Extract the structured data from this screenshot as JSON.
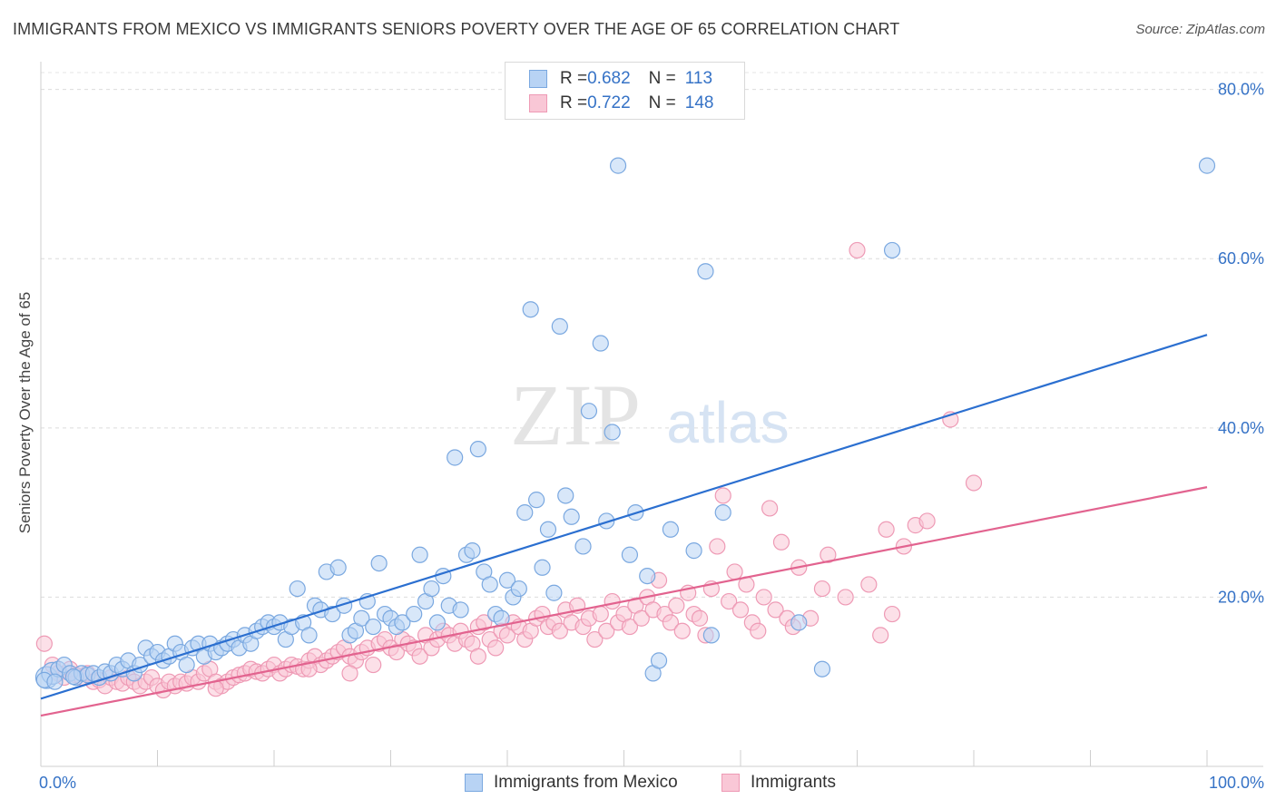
{
  "title": "IMMIGRANTS FROM MEXICO VS IMMIGRANTS SENIORS POVERTY OVER THE AGE OF 65 CORRELATION CHART",
  "source": "Source: ZipAtlas.com",
  "watermark": {
    "zip": "ZIP",
    "atlas": "atlas"
  },
  "legend": [
    {
      "r_label": "R = ",
      "r_value": "0.682",
      "n_label": "N = ",
      "n_value": "113",
      "color": "#b8d3f4"
    },
    {
      "r_label": "R = ",
      "r_value": "0.722",
      "n_label": "N = ",
      "n_value": "148",
      "color": "#f9c7d6"
    }
  ],
  "chart_data": {
    "type": "scatter",
    "title": "IMMIGRANTS FROM MEXICO VS IMMIGRANTS SENIORS POVERTY OVER THE AGE OF 65 CORRELATION CHART",
    "xlabel": "",
    "ylabel": "Seniors Poverty Over the Age of 65",
    "xlim": [
      0,
      100
    ],
    "ylim": [
      0,
      82
    ],
    "x_tick_labels": [
      "0.0%",
      "100.0%"
    ],
    "y_ticks": [
      20,
      40,
      60,
      80
    ],
    "y_tick_labels": [
      "20.0%",
      "40.0%",
      "60.0%",
      "80.0%"
    ],
    "grid": "horizontal dashed",
    "legend_position": "top-center",
    "series": [
      {
        "name": "Immigrants from Mexico",
        "color": "#7aa8e0",
        "fill": "#b8d3f4",
        "trend": {
          "x": [
            0,
            100
          ],
          "y": [
            8.0,
            51.0
          ],
          "color": "#2b6fd0"
        },
        "points": [
          [
            0.5,
            10.5
          ],
          [
            1.0,
            11.0
          ],
          [
            1.5,
            11.5
          ],
          [
            2.0,
            12.0
          ],
          [
            2.5,
            11.0
          ],
          [
            3.0,
            10.5
          ],
          [
            3.5,
            11.0
          ],
          [
            4.0,
            10.8
          ],
          [
            4.5,
            11.0
          ],
          [
            5.0,
            10.5
          ],
          [
            5.5,
            11.2
          ],
          [
            6.0,
            11.0
          ],
          [
            6.5,
            12.0
          ],
          [
            7.0,
            11.5
          ],
          [
            7.5,
            12.5
          ],
          [
            8.0,
            11.0
          ],
          [
            8.5,
            12.0
          ],
          [
            9.0,
            14.0
          ],
          [
            9.5,
            13.0
          ],
          [
            10.0,
            13.5
          ],
          [
            10.5,
            12.5
          ],
          [
            11.0,
            13.0
          ],
          [
            11.5,
            14.5
          ],
          [
            12.0,
            13.5
          ],
          [
            12.5,
            12.0
          ],
          [
            13.0,
            14.0
          ],
          [
            13.5,
            14.5
          ],
          [
            14.0,
            13.0
          ],
          [
            14.5,
            14.5
          ],
          [
            15.0,
            13.5
          ],
          [
            15.5,
            14.0
          ],
          [
            16.0,
            14.5
          ],
          [
            16.5,
            15.0
          ],
          [
            17.0,
            14.0
          ],
          [
            17.5,
            15.5
          ],
          [
            18.0,
            14.5
          ],
          [
            18.5,
            16.0
          ],
          [
            19.0,
            16.5
          ],
          [
            19.5,
            17.0
          ],
          [
            20.0,
            16.5
          ],
          [
            20.5,
            17.0
          ],
          [
            21.0,
            15.0
          ],
          [
            21.5,
            16.5
          ],
          [
            22.0,
            21.0
          ],
          [
            22.5,
            17.0
          ],
          [
            23.0,
            15.5
          ],
          [
            23.5,
            19.0
          ],
          [
            24.0,
            18.5
          ],
          [
            24.5,
            23.0
          ],
          [
            25.0,
            18.0
          ],
          [
            25.5,
            23.5
          ],
          [
            26.0,
            19.0
          ],
          [
            26.5,
            15.5
          ],
          [
            27.0,
            16.0
          ],
          [
            27.5,
            17.5
          ],
          [
            28.0,
            19.5
          ],
          [
            28.5,
            16.5
          ],
          [
            29.0,
            24.0
          ],
          [
            29.5,
            18.0
          ],
          [
            30.0,
            17.5
          ],
          [
            30.5,
            16.5
          ],
          [
            31.0,
            17.0
          ],
          [
            32.0,
            18.0
          ],
          [
            32.5,
            25.0
          ],
          [
            33.0,
            19.5
          ],
          [
            33.5,
            21.0
          ],
          [
            34.0,
            17.0
          ],
          [
            34.5,
            22.5
          ],
          [
            35.0,
            19.0
          ],
          [
            35.5,
            36.5
          ],
          [
            36.0,
            18.5
          ],
          [
            36.5,
            25.0
          ],
          [
            37.0,
            25.5
          ],
          [
            37.5,
            37.5
          ],
          [
            38.0,
            23.0
          ],
          [
            38.5,
            21.5
          ],
          [
            39.0,
            18.0
          ],
          [
            39.5,
            17.5
          ],
          [
            40.0,
            22.0
          ],
          [
            40.5,
            20.0
          ],
          [
            41.0,
            21.0
          ],
          [
            41.5,
            30.0
          ],
          [
            42.0,
            54.0
          ],
          [
            42.5,
            31.5
          ],
          [
            43.0,
            23.5
          ],
          [
            43.5,
            28.0
          ],
          [
            44.0,
            20.5
          ],
          [
            44.5,
            52.0
          ],
          [
            45.0,
            32.0
          ],
          [
            45.5,
            29.5
          ],
          [
            46.5,
            26.0
          ],
          [
            47.0,
            42.0
          ],
          [
            48.0,
            50.0
          ],
          [
            48.5,
            29.0
          ],
          [
            49.0,
            39.5
          ],
          [
            49.5,
            71.0
          ],
          [
            50.5,
            25.0
          ],
          [
            51.0,
            30.0
          ],
          [
            52.0,
            22.5
          ],
          [
            52.5,
            11.0
          ],
          [
            53.0,
            12.5
          ],
          [
            54.0,
            28.0
          ],
          [
            56.0,
            25.5
          ],
          [
            57.0,
            58.5
          ],
          [
            57.5,
            15.5
          ],
          [
            58.5,
            30.0
          ],
          [
            65.0,
            17.0
          ],
          [
            67.0,
            11.5
          ],
          [
            73.0,
            61.0
          ],
          [
            100.0,
            71.0
          ],
          [
            0.3,
            10.2
          ],
          [
            1.2,
            10.0
          ],
          [
            2.8,
            10.6
          ]
        ]
      },
      {
        "name": "Immigrants",
        "color": "#ee9ab5",
        "fill": "#f9c7d6",
        "trend": {
          "x": [
            0,
            100
          ],
          "y": [
            6.0,
            33.0
          ],
          "color": "#e2638f"
        },
        "points": [
          [
            0.3,
            14.5
          ],
          [
            1.0,
            12.0
          ],
          [
            1.5,
            11.0
          ],
          [
            2.0,
            10.5
          ],
          [
            2.5,
            11.5
          ],
          [
            3.0,
            10.8
          ],
          [
            3.5,
            10.5
          ],
          [
            4.0,
            11.0
          ],
          [
            4.5,
            10.0
          ],
          [
            5.0,
            10.2
          ],
          [
            5.5,
            9.5
          ],
          [
            6.0,
            10.5
          ],
          [
            6.5,
            10.0
          ],
          [
            7.0,
            9.8
          ],
          [
            7.5,
            10.5
          ],
          [
            8.0,
            10.0
          ],
          [
            8.5,
            9.5
          ],
          [
            9.0,
            10.0
          ],
          [
            9.5,
            10.5
          ],
          [
            10.0,
            9.5
          ],
          [
            10.5,
            9.0
          ],
          [
            11.0,
            10.0
          ],
          [
            11.5,
            9.5
          ],
          [
            12.0,
            10.0
          ],
          [
            12.5,
            9.8
          ],
          [
            13.0,
            10.5
          ],
          [
            13.5,
            10.0
          ],
          [
            14.0,
            11.0
          ],
          [
            14.5,
            11.5
          ],
          [
            15.0,
            10.0
          ],
          [
            15.5,
            9.5
          ],
          [
            16.0,
            10.0
          ],
          [
            16.5,
            10.5
          ],
          [
            17.0,
            10.8
          ],
          [
            17.5,
            11.0
          ],
          [
            18.0,
            11.5
          ],
          [
            18.5,
            11.2
          ],
          [
            19.0,
            11.0
          ],
          [
            19.5,
            11.5
          ],
          [
            20.0,
            12.0
          ],
          [
            20.5,
            11.0
          ],
          [
            21.0,
            11.5
          ],
          [
            21.5,
            12.0
          ],
          [
            22.0,
            11.8
          ],
          [
            22.5,
            11.5
          ],
          [
            23.0,
            12.5
          ],
          [
            23.5,
            13.0
          ],
          [
            24.0,
            12.0
          ],
          [
            24.5,
            12.5
          ],
          [
            25.0,
            13.0
          ],
          [
            25.5,
            13.5
          ],
          [
            26.0,
            14.0
          ],
          [
            26.5,
            13.0
          ],
          [
            27.0,
            12.5
          ],
          [
            27.5,
            13.5
          ],
          [
            28.0,
            14.0
          ],
          [
            28.5,
            12.0
          ],
          [
            29.0,
            14.5
          ],
          [
            29.5,
            15.0
          ],
          [
            30.0,
            14.0
          ],
          [
            30.5,
            13.5
          ],
          [
            31.0,
            15.0
          ],
          [
            31.5,
            14.5
          ],
          [
            32.0,
            14.0
          ],
          [
            32.5,
            13.0
          ],
          [
            33.0,
            15.5
          ],
          [
            33.5,
            14.0
          ],
          [
            34.0,
            15.0
          ],
          [
            34.5,
            16.0
          ],
          [
            35.0,
            15.5
          ],
          [
            35.5,
            14.5
          ],
          [
            36.0,
            16.0
          ],
          [
            36.5,
            15.0
          ],
          [
            37.0,
            14.5
          ],
          [
            37.5,
            16.5
          ],
          [
            38.0,
            17.0
          ],
          [
            38.5,
            15.0
          ],
          [
            39.0,
            14.0
          ],
          [
            39.5,
            16.0
          ],
          [
            40.0,
            15.5
          ],
          [
            40.5,
            17.0
          ],
          [
            41.0,
            16.5
          ],
          [
            41.5,
            15.0
          ],
          [
            42.0,
            16.0
          ],
          [
            42.5,
            17.5
          ],
          [
            43.0,
            18.0
          ],
          [
            43.5,
            16.5
          ],
          [
            44.0,
            17.0
          ],
          [
            44.5,
            16.0
          ],
          [
            45.0,
            18.5
          ],
          [
            45.5,
            17.0
          ],
          [
            46.0,
            19.0
          ],
          [
            46.5,
            16.5
          ],
          [
            47.0,
            17.5
          ],
          [
            47.5,
            15.0
          ],
          [
            48.0,
            18.0
          ],
          [
            48.5,
            16.0
          ],
          [
            49.0,
            19.5
          ],
          [
            49.5,
            17.0
          ],
          [
            50.0,
            18.0
          ],
          [
            50.5,
            16.5
          ],
          [
            51.0,
            19.0
          ],
          [
            51.5,
            17.5
          ],
          [
            52.0,
            20.0
          ],
          [
            52.5,
            18.5
          ],
          [
            53.0,
            22.0
          ],
          [
            53.5,
            18.0
          ],
          [
            54.0,
            17.0
          ],
          [
            54.5,
            19.0
          ],
          [
            55.0,
            16.0
          ],
          [
            55.5,
            20.5
          ],
          [
            56.0,
            18.0
          ],
          [
            56.5,
            17.5
          ],
          [
            57.0,
            15.5
          ],
          [
            57.5,
            21.0
          ],
          [
            58.0,
            26.0
          ],
          [
            58.5,
            32.0
          ],
          [
            59.0,
            19.5
          ],
          [
            59.5,
            23.0
          ],
          [
            60.0,
            18.5
          ],
          [
            60.5,
            21.5
          ],
          [
            61.0,
            17.0
          ],
          [
            61.5,
            16.0
          ],
          [
            62.0,
            20.0
          ],
          [
            62.5,
            30.5
          ],
          [
            63.0,
            18.5
          ],
          [
            63.5,
            26.5
          ],
          [
            64.0,
            17.5
          ],
          [
            64.5,
            16.5
          ],
          [
            65.0,
            23.5
          ],
          [
            66.0,
            17.5
          ],
          [
            67.0,
            21.0
          ],
          [
            67.5,
            25.0
          ],
          [
            69.0,
            20.0
          ],
          [
            70.0,
            61.0
          ],
          [
            71.0,
            21.5
          ],
          [
            72.0,
            15.5
          ],
          [
            72.5,
            28.0
          ],
          [
            73.0,
            18.0
          ],
          [
            74.0,
            26.0
          ],
          [
            75.0,
            28.5
          ],
          [
            76.0,
            29.0
          ],
          [
            78.0,
            41.0
          ],
          [
            80.0,
            33.5
          ],
          [
            37.5,
            13.0
          ],
          [
            26.5,
            11.0
          ],
          [
            23.0,
            11.5
          ],
          [
            15.0,
            9.2
          ]
        ]
      }
    ]
  },
  "bottom_legend": [
    {
      "label": "Immigrants from Mexico"
    },
    {
      "label": "Immigrants"
    }
  ]
}
